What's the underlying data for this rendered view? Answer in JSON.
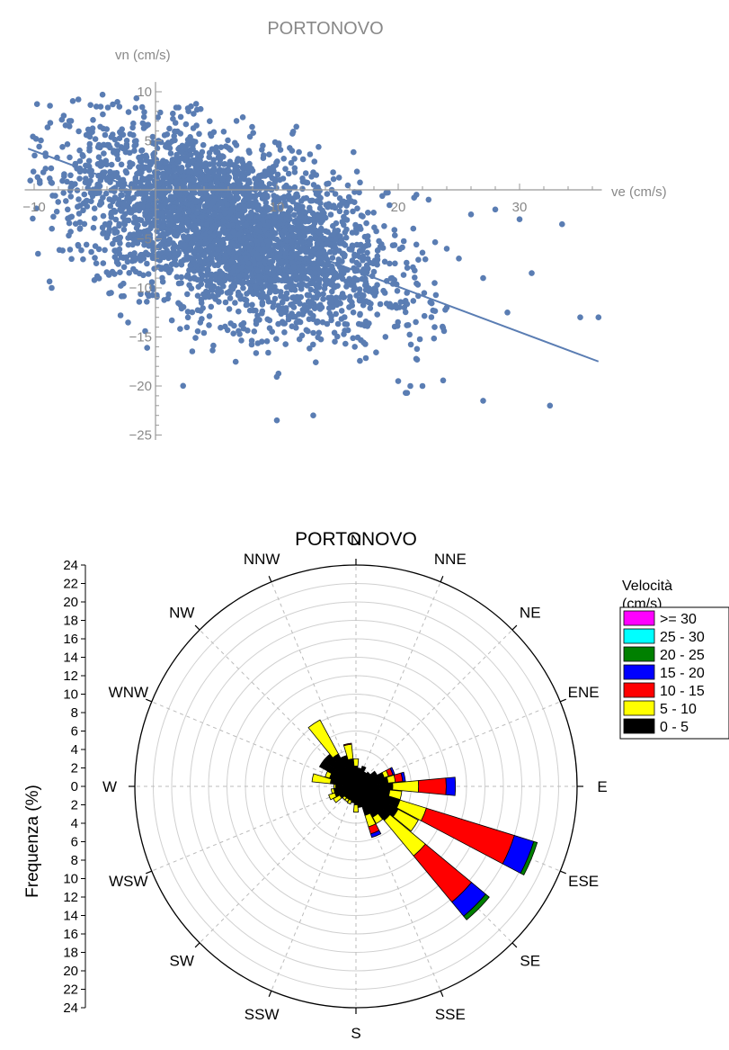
{
  "chart_data": [
    {
      "type": "scatter",
      "title": "PORTONOVO",
      "xlabel": "ve (cm/s)",
      "ylabel": "vn (cm/s)",
      "xlim": [
        -11,
        37
      ],
      "ylim": [
        -25.5,
        11
      ],
      "xticks": [
        -10,
        10,
        20,
        30
      ],
      "yticks": [
        10,
        5,
        -5,
        -10,
        -15,
        -20,
        -25
      ],
      "point_color": "#5a7db3",
      "cloud_center": [
        6,
        -4
      ],
      "cloud_spread": [
        6.5,
        5
      ],
      "cloud_correlation": -0.5,
      "num_points": 3500,
      "outliers": [
        [
          32.5,
          -22
        ],
        [
          27,
          -21.5
        ],
        [
          35,
          -13
        ],
        [
          36.5,
          -13
        ],
        [
          29,
          -12.5
        ],
        [
          31,
          -8.5
        ],
        [
          33.5,
          -3.5
        ],
        [
          26,
          -2.5
        ],
        [
          28,
          -2
        ],
        [
          30,
          -3
        ],
        [
          24,
          -6
        ],
        [
          25,
          -7
        ],
        [
          27,
          -9
        ],
        [
          22,
          -20
        ],
        [
          21,
          -20
        ],
        [
          20,
          -19.5
        ],
        [
          24,
          -12
        ],
        [
          23,
          -14
        ],
        [
          13,
          -23
        ],
        [
          10,
          -23.5
        ],
        [
          22.5,
          -1
        ],
        [
          21.5,
          -0.5
        ],
        [
          23,
          -9.5
        ],
        [
          20.5,
          -12
        ]
      ],
      "regression_line": {
        "x": [
          -10.5,
          36.5
        ],
        "y": [
          4.2,
          -17.5
        ]
      },
      "grid": false
    },
    {
      "type": "windrose",
      "title": "PORTONOVO",
      "ylabel": "Frequenza (%)",
      "radial_max": 24,
      "radial_step": 2,
      "frequency_ticks": [
        "24",
        "22",
        "20",
        "18",
        "16",
        "14",
        "12",
        "10",
        "8",
        "6",
        "4",
        "2",
        "0",
        "2",
        "4",
        "6",
        "8",
        "10",
        "12",
        "14",
        "16",
        "18",
        "20",
        "22",
        "24"
      ],
      "directions": [
        "N",
        "NNE",
        "NE",
        "ENE",
        "E",
        "ESE",
        "SE",
        "SSE",
        "S",
        "SSW",
        "SW",
        "WSW",
        "W",
        "WNW",
        "NW",
        "NNW"
      ],
      "legend_title": [
        "Velocità",
        "(cm/s)"
      ],
      "legend": [
        {
          "label": ">= 30",
          "color": "#ff00ff"
        },
        {
          "label": "25 - 30",
          "color": "#00ffff"
        },
        {
          "label": "20 - 25",
          "color": "#008000"
        },
        {
          "label": "15 - 20",
          "color": "#0000ff"
        },
        {
          "label": "10 - 15",
          "color": "#ff0000"
        },
        {
          "label": "5 - 10",
          "color": "#ffff00"
        },
        {
          "label": "0 - 5",
          "color": "#000000"
        }
      ],
      "bin_order_inner_to_outer": [
        "0 - 5",
        "5 - 10",
        "10 - 15",
        "15 - 20",
        "20 - 25",
        "25 - 30",
        ">= 30"
      ],
      "sectors": [
        {
          "angle": 0,
          "values": [
            2.2,
            0.8,
            0,
            0,
            0,
            0,
            0
          ]
        },
        {
          "angle": 11.25,
          "values": [
            2.0,
            0,
            0,
            0,
            0,
            0,
            0
          ]
        },
        {
          "angle": 22.5,
          "values": [
            2.3,
            0,
            0,
            0,
            0,
            0,
            0
          ]
        },
        {
          "angle": 33.75,
          "values": [
            1.8,
            0,
            0,
            0,
            0,
            0,
            0
          ]
        },
        {
          "angle": 45,
          "values": [
            2.0,
            0,
            0,
            0,
            0,
            0,
            0
          ]
        },
        {
          "angle": 56.25,
          "values": [
            2.6,
            0,
            0,
            0,
            0,
            0,
            0
          ]
        },
        {
          "angle": 67.5,
          "values": [
            3.2,
            0.5,
            0.5,
            0.2,
            0,
            0,
            0
          ]
        },
        {
          "angle": 78.75,
          "values": [
            3.5,
            0.8,
            0.8,
            0.3,
            0,
            0,
            0
          ]
        },
        {
          "angle": 90,
          "values": [
            4.0,
            2.8,
            3.0,
            1.0,
            0,
            0,
            0
          ]
        },
        {
          "angle": 101.25,
          "values": [
            3.7,
            1.3,
            0,
            0,
            0,
            0,
            0
          ]
        },
        {
          "angle": 112.5,
          "values": [
            5.0,
            3.0,
            10.0,
            2.2,
            0.4,
            0,
            0
          ]
        },
        {
          "angle": 123.75,
          "values": [
            5.2,
            2.5,
            0,
            0,
            0,
            0,
            0
          ]
        },
        {
          "angle": 135,
          "values": [
            4.8,
            5.0,
            6.5,
            2.0,
            0.5,
            0,
            0
          ]
        },
        {
          "angle": 146.25,
          "values": [
            3.8,
            0.8,
            0,
            0,
            0,
            0,
            0
          ]
        },
        {
          "angle": 157.5,
          "values": [
            3.3,
            1.3,
            0.8,
            0.4,
            0,
            0,
            0
          ]
        },
        {
          "angle": 168.75,
          "values": [
            2.3,
            0,
            0,
            0,
            0,
            0,
            0
          ]
        },
        {
          "angle": 180,
          "values": [
            2.0,
            0.8,
            0,
            0,
            0,
            0,
            0
          ]
        },
        {
          "angle": 191.25,
          "values": [
            1.8,
            0,
            0,
            0,
            0,
            0,
            0
          ]
        },
        {
          "angle": 202.5,
          "values": [
            1.6,
            0.4,
            0,
            0,
            0,
            0,
            0
          ]
        },
        {
          "angle": 213.75,
          "values": [
            1.6,
            0.3,
            0,
            0,
            0,
            0,
            0
          ]
        },
        {
          "angle": 225,
          "values": [
            1.6,
            0.3,
            0,
            0,
            0,
            0,
            0
          ]
        },
        {
          "angle": 236.25,
          "values": [
            2.0,
            0.8,
            0,
            0,
            0,
            0,
            0
          ]
        },
        {
          "angle": 247.5,
          "values": [
            2.4,
            0.7,
            0,
            0,
            0,
            0,
            0
          ]
        },
        {
          "angle": 258.75,
          "values": [
            2.4,
            0.3,
            0,
            0,
            0,
            0,
            0
          ]
        },
        {
          "angle": 270,
          "values": [
            2.2,
            0.2,
            0,
            0,
            0,
            0,
            0
          ]
        },
        {
          "angle": 281.25,
          "values": [
            2.8,
            2.0,
            0,
            0,
            0,
            0,
            0
          ]
        },
        {
          "angle": 292.5,
          "values": [
            3.0,
            0.5,
            0,
            0,
            0,
            0,
            0
          ]
        },
        {
          "angle": 303.75,
          "values": [
            4.5,
            0,
            0,
            0,
            0,
            0,
            0
          ]
        },
        {
          "angle": 315,
          "values": [
            4.5,
            0,
            0,
            0,
            0,
            0,
            0
          ]
        },
        {
          "angle": 326.25,
          "values": [
            4.0,
            4.2,
            0,
            0,
            0,
            0,
            0
          ]
        },
        {
          "angle": 337.5,
          "values": [
            3.5,
            0,
            0,
            0,
            0,
            0,
            0
          ]
        },
        {
          "angle": 348.75,
          "values": [
            3.0,
            1.6,
            0.1,
            0,
            0,
            0,
            0
          ]
        }
      ]
    }
  ]
}
